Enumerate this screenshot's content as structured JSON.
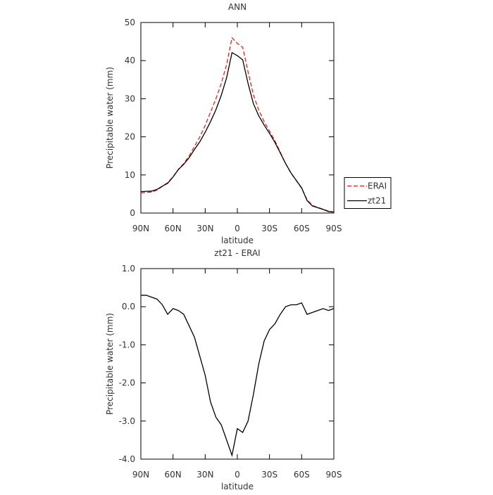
{
  "chart_data": [
    {
      "type": "line",
      "title": "ANN",
      "xlabel": "latitude",
      "ylabel": "Precipitable water (mm)",
      "x": [
        90,
        85,
        80,
        75,
        70,
        65,
        60,
        55,
        50,
        45,
        40,
        35,
        30,
        25,
        20,
        15,
        10,
        5,
        0,
        -5,
        -10,
        -15,
        -20,
        -25,
        -30,
        -35,
        -40,
        -45,
        -50,
        -55,
        -60,
        -65,
        -70,
        -75,
        -80,
        -85,
        -90
      ],
      "series": [
        {
          "name": "ERAI",
          "color": "#e8231f",
          "dash": true,
          "values": [
            5.3,
            5.4,
            5.5,
            6.0,
            7.0,
            8.0,
            9.5,
            11.5,
            13,
            15,
            17.5,
            20,
            23,
            26.5,
            30,
            34,
            39,
            46,
            44.5,
            43.5,
            37,
            31,
            27,
            24,
            21.5,
            19,
            16,
            13,
            10.5,
            8.5,
            6.5,
            3.5,
            2,
            1.5,
            1,
            0.5,
            0.3
          ]
        },
        {
          "name": "zt21",
          "color": "#000000",
          "dash": false,
          "values": [
            5.6,
            5.7,
            5.75,
            6.2,
            7.05,
            7.8,
            9.45,
            11.4,
            12.8,
            14.5,
            16.7,
            18.7,
            21.2,
            24.0,
            27.1,
            30.9,
            35.5,
            42.1,
            41.3,
            40.2,
            34.0,
            28.7,
            25.5,
            23.1,
            20.9,
            18.55,
            15.8,
            13.0,
            10.55,
            8.55,
            6.6,
            3.3,
            1.85,
            1.4,
            0.95,
            0.4,
            0.25
          ]
        }
      ],
      "xlim": [
        90,
        -90
      ],
      "xticks": [
        {
          "value": 90,
          "label": "90N"
        },
        {
          "value": 60,
          "label": "60N"
        },
        {
          "value": 30,
          "label": "30N"
        },
        0,
        {
          "value": -30,
          "label": "30S"
        },
        {
          "value": -60,
          "label": "60S"
        },
        {
          "value": -90,
          "label": "90S"
        }
      ],
      "ylim": [
        0,
        50
      ],
      "yticks": [
        0,
        10,
        20,
        30,
        40,
        50
      ],
      "legend": "right"
    },
    {
      "type": "line",
      "title": "zt21 - ERAI",
      "xlabel": "latitude",
      "ylabel": "Precipitable water (mm)",
      "x": [
        90,
        85,
        80,
        75,
        70,
        65,
        60,
        55,
        50,
        45,
        40,
        35,
        30,
        25,
        20,
        15,
        10,
        5,
        0,
        -5,
        -10,
        -15,
        -20,
        -25,
        -30,
        -35,
        -40,
        -45,
        -50,
        -55,
        -60,
        -65,
        -70,
        -75,
        -80,
        -85,
        -90
      ],
      "series": [
        {
          "name": "zt21 - ERAI",
          "color": "#000000",
          "dash": false,
          "values": [
            0.3,
            0.3,
            0.25,
            0.2,
            0.05,
            -0.2,
            -0.05,
            -0.1,
            -0.2,
            -0.5,
            -0.8,
            -1.3,
            -1.8,
            -2.5,
            -2.9,
            -3.1,
            -3.5,
            -3.9,
            -3.2,
            -3.3,
            -3.0,
            -2.3,
            -1.5,
            -0.9,
            -0.6,
            -0.45,
            -0.2,
            0.0,
            0.05,
            0.05,
            0.1,
            -0.2,
            -0.15,
            -0.1,
            -0.05,
            -0.1,
            -0.05
          ]
        }
      ],
      "xlim": [
        90,
        -90
      ],
      "xticks": [
        {
          "value": 90,
          "label": "90N"
        },
        {
          "value": 60,
          "label": "60N"
        },
        {
          "value": 30,
          "label": "30N"
        },
        0,
        {
          "value": -30,
          "label": "30S"
        },
        {
          "value": -60,
          "label": "60S"
        },
        {
          "value": -90,
          "label": "90S"
        }
      ],
      "ylim": [
        -4,
        1
      ],
      "yticks": [
        {
          "value": -4,
          "label": "-4.0"
        },
        {
          "value": -3,
          "label": "-3.0"
        },
        {
          "value": -2,
          "label": "-2.0"
        },
        {
          "value": -1,
          "label": "-1.0"
        },
        {
          "value": 0,
          "label": "0.0"
        },
        {
          "value": 1,
          "label": "1.0"
        }
      ]
    }
  ]
}
